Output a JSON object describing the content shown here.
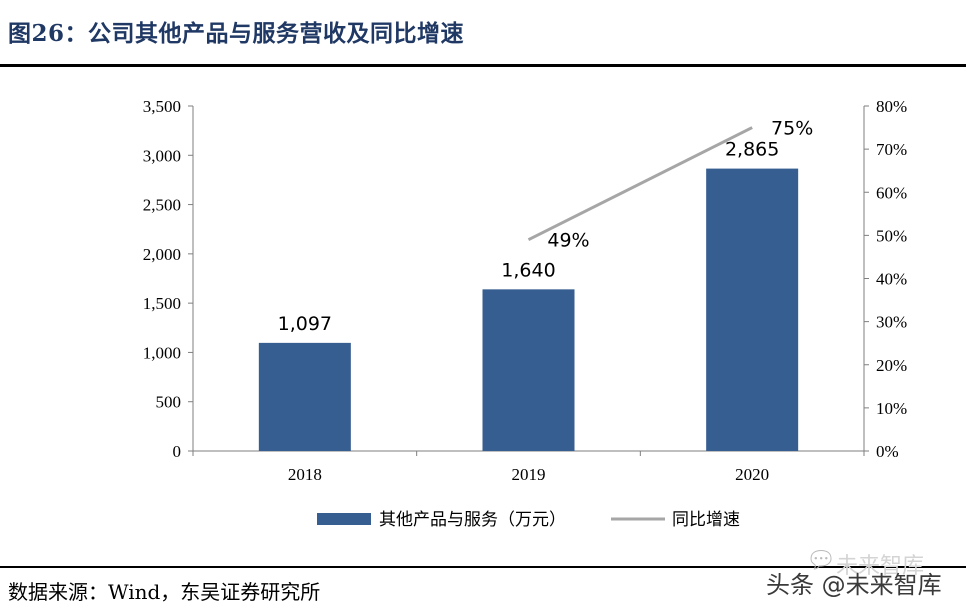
{
  "figure": {
    "title": "图26：公司其他产品与服务营收及同比增速",
    "source": "数据来源：Wind，东吴证券研究所"
  },
  "watermark": {
    "top_text": "未来智库",
    "bottom_text": "头条 @未来智库"
  },
  "chart_data": {
    "type": "bar",
    "categories": [
      "2018",
      "2019",
      "2020"
    ],
    "series": [
      {
        "name": "其他产品与服务（万元）",
        "type": "bar",
        "axis": "left",
        "color": "#365e91",
        "values": [
          1097,
          1640,
          2865
        ],
        "labels": [
          "1,097",
          "1,640",
          "2,865"
        ]
      },
      {
        "name": "同比增速",
        "type": "line",
        "axis": "right",
        "color": "#a6a6a6",
        "values": [
          null,
          49,
          75
        ],
        "labels": [
          "",
          "49%",
          "75%"
        ]
      }
    ],
    "y_left": {
      "ylim": [
        0,
        3500
      ],
      "ticks": [
        0,
        500,
        1000,
        1500,
        2000,
        2500,
        3000,
        3500
      ],
      "tick_labels": [
        "0",
        "500",
        "1,000",
        "1,500",
        "2,000",
        "2,500",
        "3,000",
        "3,500"
      ]
    },
    "y_right": {
      "ylim": [
        0,
        80
      ],
      "ticks": [
        0,
        10,
        20,
        30,
        40,
        50,
        60,
        70,
        80
      ],
      "tick_labels": [
        "0%",
        "10%",
        "20%",
        "30%",
        "40%",
        "50%",
        "60%",
        "70%",
        "80%"
      ]
    },
    "grid": false,
    "legend": {
      "position": "bottom",
      "items": [
        "其他产品与服务（万元）",
        "同比增速"
      ]
    }
  }
}
